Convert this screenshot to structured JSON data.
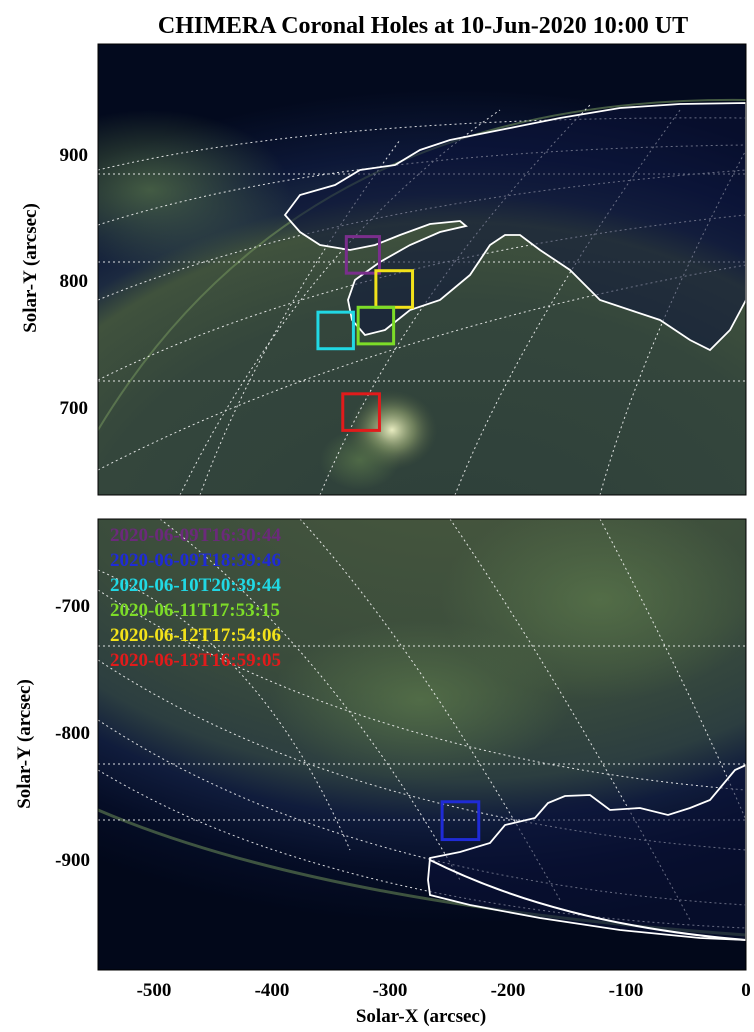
{
  "chart_data": {
    "type": "image",
    "title": "CHIMERA Coronal Holes at 10-Jun-2020 10:00 UT",
    "xlabel": "Solar-X (arcsec)",
    "x_ticks": [
      "-500",
      "-400",
      "-300",
      "-200",
      "-100",
      "0"
    ],
    "panels": [
      {
        "name": "top",
        "ylabel": "Solar-Y (arcsec)",
        "y_ticks": [
          "900",
          "800",
          "700"
        ],
        "xlim": [
          -550,
          -2
        ],
        "ylim": [
          630,
          1000
        ],
        "boxes": [
          {
            "color": "#7a2e8c",
            "x": [
              -340,
              -312
            ],
            "y": [
              812,
              842
            ]
          },
          {
            "color": "#f2e21a",
            "x": [
              -315,
              -284
            ],
            "y": [
              784,
              814
            ]
          },
          {
            "color": "#7ddc28",
            "x": [
              -330,
              -300
            ],
            "y": [
              754,
              784
            ]
          },
          {
            "color": "#21d8e4",
            "x": [
              -364,
              -334
            ],
            "y": [
              750,
              780
            ]
          },
          {
            "color": "#e11b1b",
            "x": [
              -343,
              -312
            ],
            "y": [
              683,
              713
            ]
          }
        ]
      },
      {
        "name": "bottom",
        "ylabel": "Solar-Y (arcsec)",
        "y_ticks": [
          "-700",
          "-800",
          "-900"
        ],
        "xlim": [
          -550,
          -2
        ],
        "ylim": [
          -1000,
          -630
        ],
        "boxes": [
          {
            "color": "#1f2bd6",
            "x": [
              -259,
              -228
            ],
            "y": [
              -893,
              -862
            ]
          }
        ]
      }
    ],
    "legend": [
      {
        "label": "2020-06-09T16:30:44",
        "color": "#6b2a7a"
      },
      {
        "label": "2020-06-09T18:39:46",
        "color": "#1f2bd6"
      },
      {
        "label": "2020-06-10T20:39:44",
        "color": "#21d8e4"
      },
      {
        "label": "2020-06-11T17:53:15",
        "color": "#7ddc28"
      },
      {
        "label": "2020-06-12T17:54:06",
        "color": "#f2e21a"
      },
      {
        "label": "2020-06-13T16:59:05",
        "color": "#e11b1b"
      }
    ],
    "legend_position": "top-left of lower panel",
    "colors": {
      "contour": "#ffffff",
      "grid": "#ffffff"
    }
  }
}
